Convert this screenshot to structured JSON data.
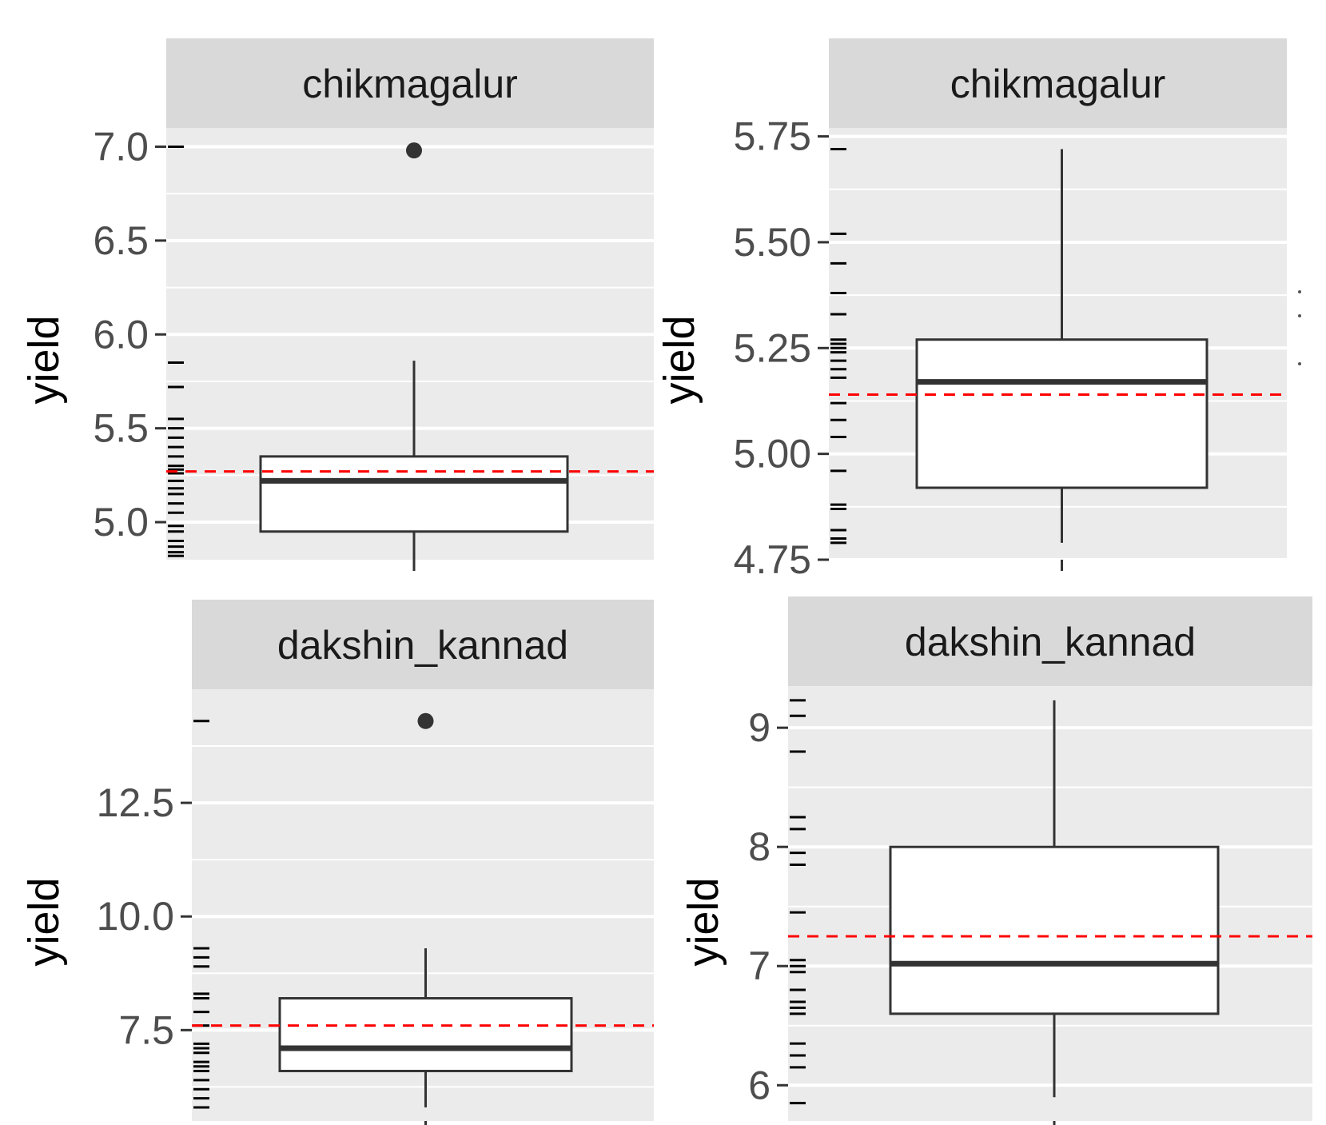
{
  "colors": {
    "panel_bg": "#EBEBEB",
    "strip_bg": "#D9D9D9",
    "grid": "#FFFFFF",
    "box_line": "#333333",
    "box_fill": "#FFFFFF",
    "tick": "#333333",
    "tick_text": "#4D4D4D",
    "mean_line": "#FF0000",
    "rug": "#000000"
  },
  "chart_data": [
    {
      "type": "boxplot",
      "facet": "chikmagalur",
      "ylabel": "yield",
      "ylim": [
        4.8,
        7.1
      ],
      "yticks": [
        5.0,
        5.5,
        6.0,
        6.5,
        7.0
      ],
      "ytick_labels": [
        "5.0",
        "5.5",
        "6.0",
        "6.5",
        "7.0"
      ],
      "box": {
        "whisker_low": 4.8,
        "q1": 4.95,
        "median": 5.22,
        "q3": 5.35,
        "whisker_high": 5.86
      },
      "outliers": [
        6.98
      ],
      "mean_line": 5.27,
      "rug": [
        7.0,
        5.85,
        5.72,
        5.55,
        5.5,
        5.45,
        5.4,
        5.35,
        5.3,
        5.28,
        5.26,
        5.22,
        5.18,
        5.15,
        5.1,
        5.05,
        4.98,
        4.95,
        4.9,
        4.87,
        4.84,
        4.82
      ]
    },
    {
      "type": "boxplot",
      "facet": "chikmagalur",
      "ylabel": "yield",
      "ylim": [
        4.75,
        5.77
      ],
      "yticks": [
        4.75,
        5.0,
        5.25,
        5.5,
        5.75
      ],
      "ytick_labels": [
        "4.75",
        "5.00",
        "5.25",
        "5.50",
        "5.75"
      ],
      "box": {
        "whisker_low": 4.79,
        "q1": 4.92,
        "median": 5.17,
        "q3": 5.27,
        "whisker_high": 5.72
      },
      "outliers": [],
      "mean_line": 5.14,
      "rug": [
        5.72,
        5.52,
        5.45,
        5.38,
        5.33,
        5.27,
        5.26,
        5.25,
        5.24,
        5.22,
        5.2,
        5.18,
        5.12,
        5.08,
        5.04,
        4.96,
        4.88,
        4.87,
        4.82,
        4.8,
        4.79
      ]
    },
    {
      "type": "boxplot",
      "facet": "dakshin_kannad",
      "ylabel": "yield",
      "ylim": [
        5.5,
        15.0
      ],
      "yticks": [
        7.5,
        10.0,
        12.5
      ],
      "ytick_labels": [
        "7.5",
        "10.0",
        "12.5"
      ],
      "box": {
        "whisker_low": 5.8,
        "q1": 6.6,
        "median": 7.1,
        "q3": 8.2,
        "whisker_high": 9.3
      },
      "outliers": [
        14.3
      ],
      "mean_line": 7.6,
      "rug": [
        14.3,
        9.3,
        9.1,
        8.9,
        8.3,
        8.2,
        7.9,
        7.6,
        7.2,
        7.1,
        7.0,
        6.8,
        6.7,
        6.6,
        6.4,
        6.2,
        6.0,
        5.8
      ]
    },
    {
      "type": "boxplot",
      "facet": "dakshin_kannad",
      "ylabel": "yield",
      "ylim": [
        5.7,
        9.35
      ],
      "yticks": [
        6,
        7,
        8,
        9
      ],
      "ytick_labels": [
        "6",
        "7",
        "8",
        "9"
      ],
      "box": {
        "whisker_low": 5.9,
        "q1": 6.6,
        "median": 7.02,
        "q3": 8.0,
        "whisker_high": 9.23
      },
      "outliers": [],
      "mean_line": 7.25,
      "rug": [
        9.23,
        9.1,
        8.8,
        8.25,
        8.15,
        7.95,
        7.85,
        7.45,
        7.05,
        7.0,
        6.95,
        6.8,
        6.7,
        6.65,
        6.6,
        6.35,
        6.25,
        6.15,
        5.85
      ]
    }
  ]
}
